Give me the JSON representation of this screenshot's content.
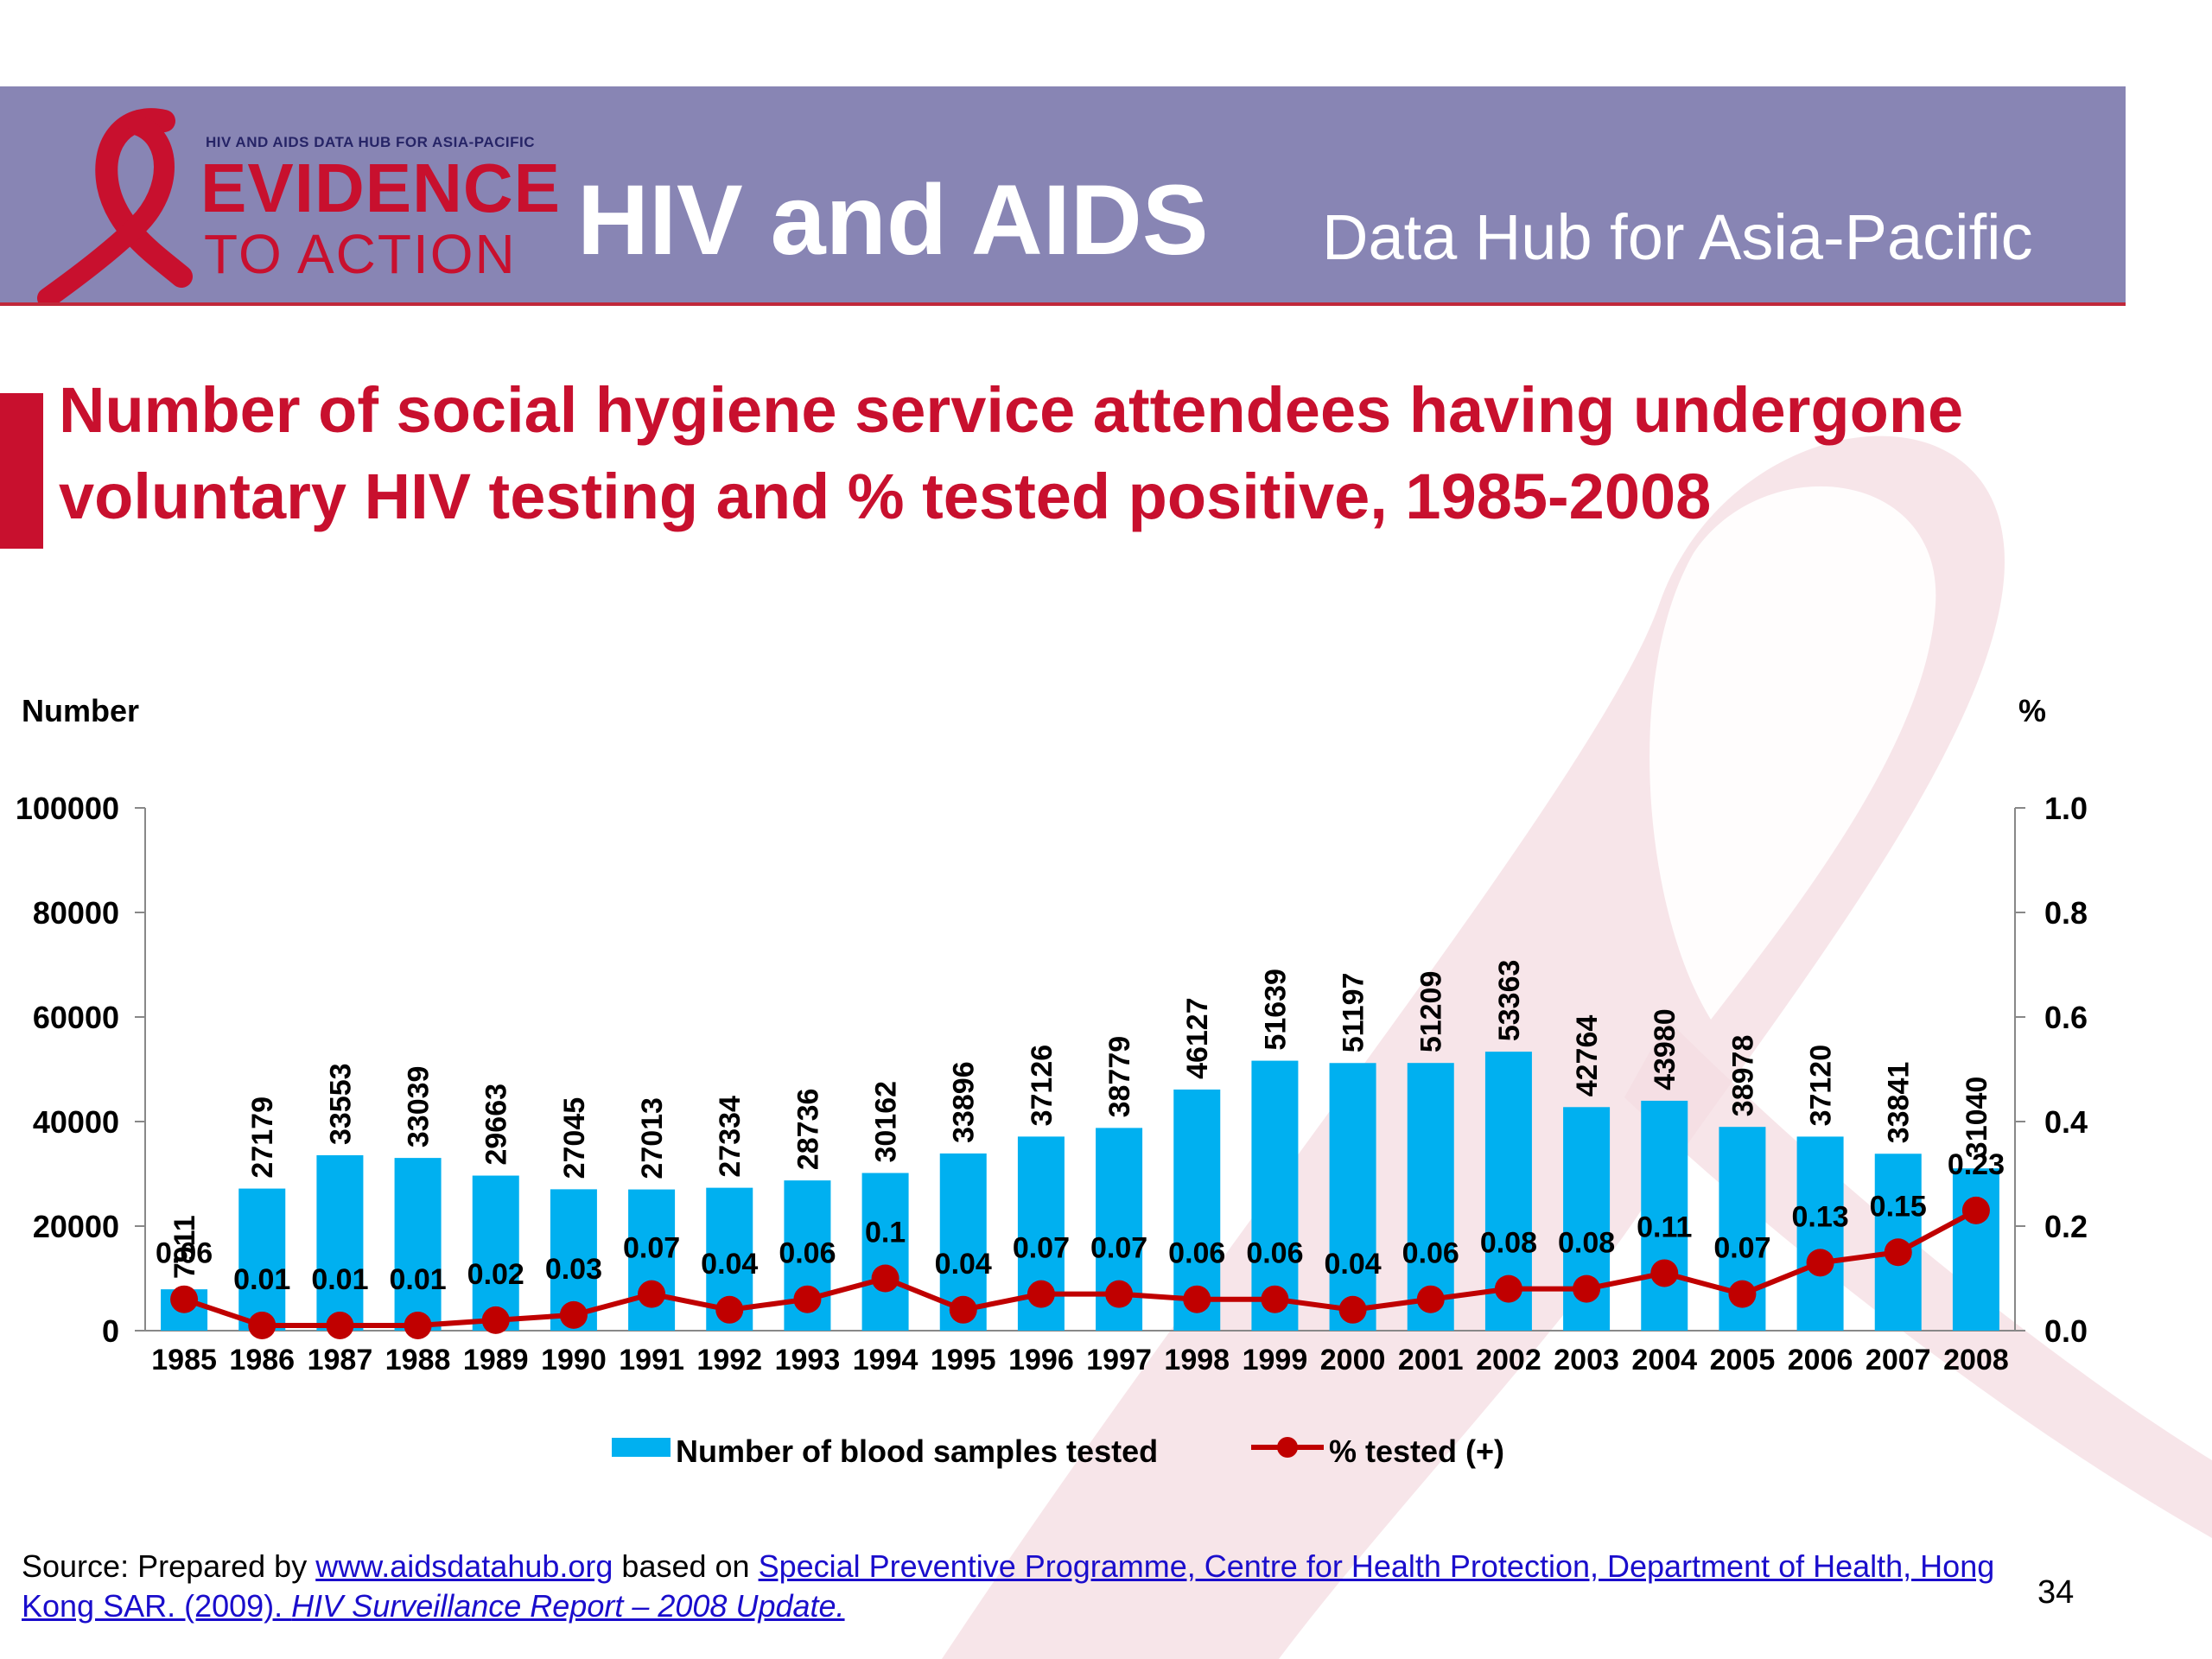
{
  "header": {
    "logo_small": "HIV AND AIDS DATA HUB FOR ASIA-PACIFIC",
    "logo_line1": "EVIDENCE",
    "logo_line2": "TO ACTION",
    "title": "HIV and AIDS",
    "subtitle": "Data Hub for Asia-Pacific",
    "colors": {
      "banner": "#8885b4",
      "accent": "#c8102e"
    }
  },
  "slide": {
    "title": "Number of social hygiene service attendees having undergone voluntary HIV testing and % tested positive, 1985-2008",
    "page_number": "34"
  },
  "source": {
    "prefix": "Source: Prepared by ",
    "link1": "www.aidsdatahub.org",
    "middle": " based on ",
    "link2": "Special Preventive Programme, Centre for Health Protection, Department of Health, Hong Kong SAR. (2009). ",
    "link2_italic": "HIV Surveillance Report – 2008 Update."
  },
  "chart_data": {
    "type": "bar",
    "categories": [
      "1985",
      "1986",
      "1987",
      "1988",
      "1989",
      "1990",
      "1991",
      "1992",
      "1993",
      "1994",
      "1995",
      "1996",
      "1997",
      "1998",
      "1999",
      "2000",
      "2001",
      "2002",
      "2003",
      "2004",
      "2005",
      "2006",
      "2007",
      "2008"
    ],
    "series": [
      {
        "name": "Number of blood samples tested",
        "type": "bar",
        "axis": "left",
        "color": "#00b0f0",
        "values": [
          7911,
          27179,
          33553,
          33039,
          29663,
          27045,
          27013,
          27334,
          28736,
          30162,
          33896,
          37126,
          38779,
          46127,
          51639,
          51197,
          51209,
          53363,
          42764,
          43980,
          38978,
          37120,
          33841,
          31040
        ]
      },
      {
        "name": "% tested (+)",
        "type": "line",
        "axis": "right",
        "color": "#c00000",
        "values": [
          0.06,
          0.01,
          0.01,
          0.01,
          0.02,
          0.03,
          0.07,
          0.04,
          0.06,
          0.1,
          0.04,
          0.07,
          0.07,
          0.06,
          0.06,
          0.04,
          0.06,
          0.08,
          0.08,
          0.11,
          0.07,
          0.13,
          0.15,
          0.23
        ]
      }
    ],
    "ylabel_left": "Number",
    "ylabel_right": "%",
    "ylim_left": [
      0,
      100000
    ],
    "ylim_right": [
      0,
      1.0
    ],
    "yticks_left": [
      "0",
      "20000",
      "40000",
      "60000",
      "80000",
      "100000"
    ],
    "yticks_right": [
      "0.0",
      "0.2",
      "0.4",
      "0.6",
      "0.8",
      "1.0"
    ],
    "grid": false,
    "legend": "bottom"
  }
}
